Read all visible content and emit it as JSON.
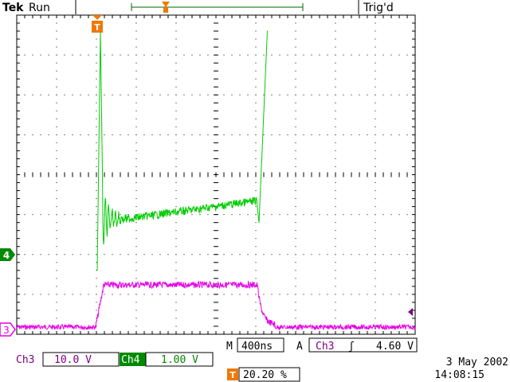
{
  "header": {
    "brand": "Tek",
    "state": "Run",
    "trigger_status": "Trig'd"
  },
  "markers": {
    "trigger_marker": "T",
    "ch4_marker": "4",
    "ch3_marker": "3"
  },
  "readouts": {
    "ch3_label": "Ch3",
    "ch3_scale": "10.0 V",
    "ch4_label": "Ch4",
    "ch4_scale": "1.00 V",
    "timebase_label": "M",
    "timebase_value": "400ns",
    "acq_label": "A",
    "trigger_source": "Ch3",
    "trigger_slope_symbol": "ʃ",
    "trigger_level": "4.60 V",
    "trigger_position_marker": "T",
    "trigger_position_value": "20.20 %",
    "date": "3 May 2002",
    "time": "14:08:15"
  },
  "colors": {
    "ch3": "#e600e6",
    "ch4": "#00cc00",
    "trigger": "#f07800",
    "grid": "#000000"
  }
}
